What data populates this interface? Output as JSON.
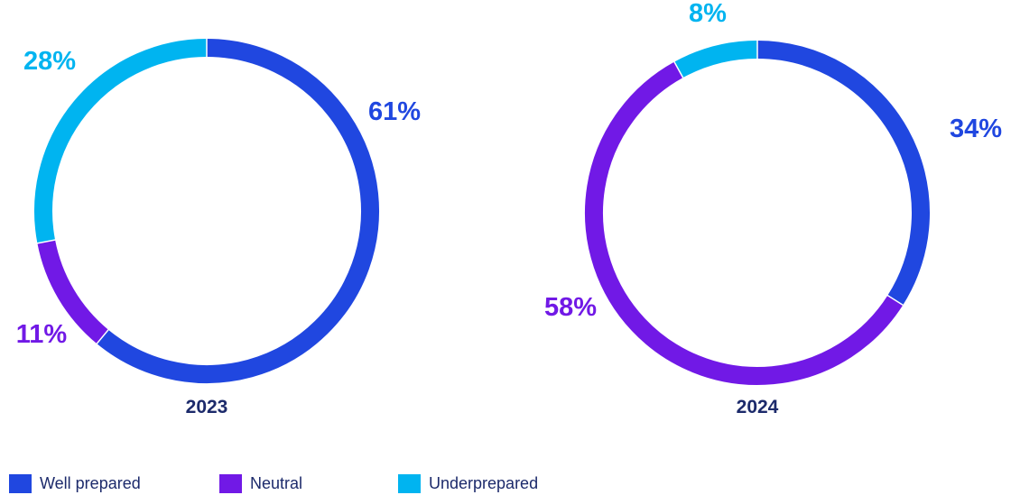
{
  "chart_data": [
    {
      "type": "pie",
      "variant": "donut",
      "title": "2023",
      "categories": [
        "Well prepared",
        "Neutral",
        "Underprepared"
      ],
      "values": [
        61,
        11,
        28
      ],
      "labels": [
        "61%",
        "11%",
        "28%"
      ],
      "colors": [
        "#2047e0",
        "#7119e6",
        "#00b4f0"
      ],
      "start_angle": 0,
      "direction": "clockwise"
    },
    {
      "type": "pie",
      "variant": "donut",
      "title": "2024",
      "categories": [
        "Well prepared",
        "Neutral",
        "Underprepared"
      ],
      "values": [
        34,
        58,
        8
      ],
      "labels": [
        "34%",
        "58%",
        "8%"
      ],
      "colors": [
        "#2047e0",
        "#7119e6",
        "#00b4f0"
      ],
      "start_angle": 0,
      "direction": "clockwise"
    }
  ],
  "legend": {
    "placement": "bottom-left",
    "items": [
      {
        "label": "Well prepared",
        "color": "#2047e0"
      },
      {
        "label": "Neutral",
        "color": "#7119e6"
      },
      {
        "label": "Underprepared",
        "color": "#00b4f0"
      }
    ]
  },
  "text_color": "#1c2a6b"
}
